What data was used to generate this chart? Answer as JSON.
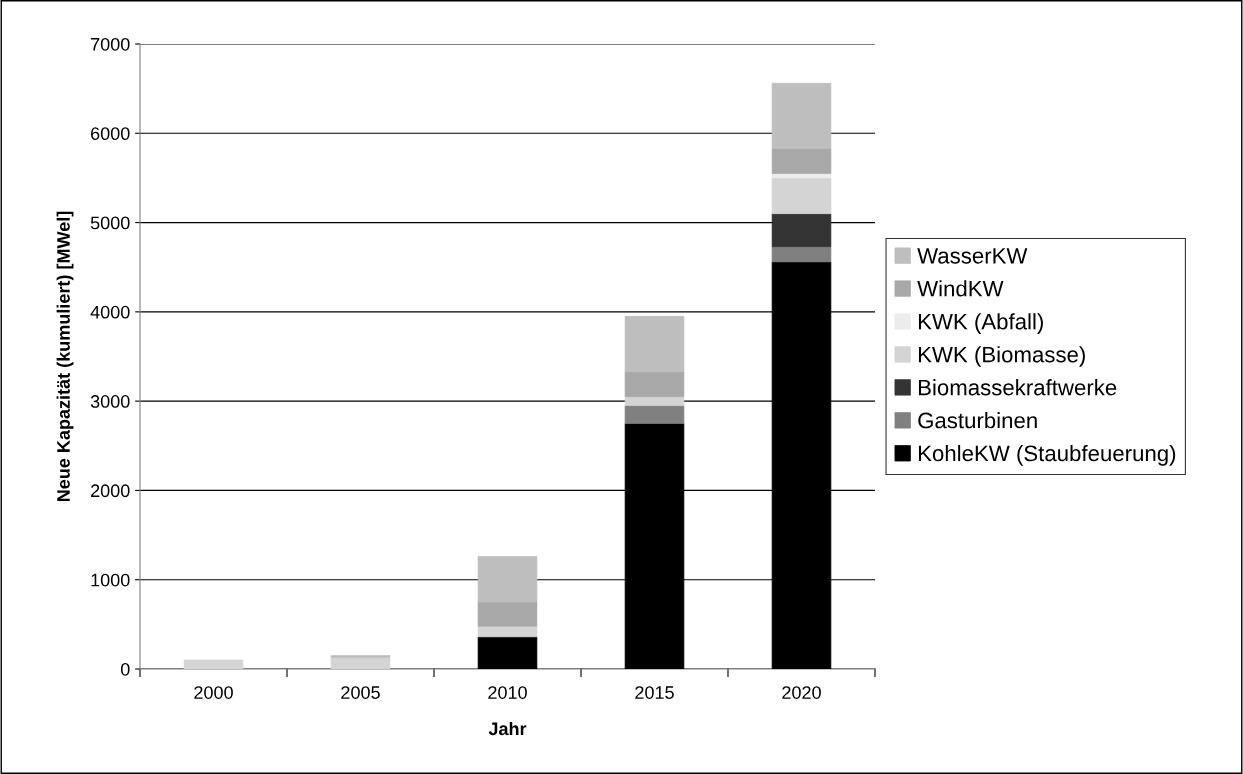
{
  "chart_data": {
    "type": "bar",
    "stacked": true,
    "xlabel": "Jahr",
    "ylabel": "Neue Kapazität (kumuliert) [MWel]",
    "categories": [
      "2000",
      "2005",
      "2010",
      "2015",
      "2020"
    ],
    "series": [
      {
        "name": "KohleKW (Staubfeuerung)",
        "color": "#000000",
        "values": [
          null,
          null,
          360,
          2750,
          4560
        ]
      },
      {
        "name": "Gasturbinen",
        "color": "#808080",
        "values": [
          null,
          null,
          null,
          200,
          170
        ]
      },
      {
        "name": "Biomassekraftwerke",
        "color": "#333333",
        "values": [
          null,
          null,
          null,
          null,
          370
        ]
      },
      {
        "name": "KWK (Biomasse)",
        "color": "#d4d4d4",
        "values": [
          100,
          130,
          120,
          100,
          400
        ]
      },
      {
        "name": "KWK (Abfall)",
        "color": "#ececec",
        "values": [
          null,
          null,
          null,
          null,
          50
        ]
      },
      {
        "name": "WindKW",
        "color": "#a8a8a8",
        "values": [
          null,
          null,
          270,
          280,
          280
        ]
      },
      {
        "name": "WasserKW",
        "color": "#bebebe",
        "values": [
          null,
          20,
          510,
          620,
          730
        ]
      }
    ],
    "ylim": [
      0,
      7000
    ],
    "yticks": [
      0,
      1000,
      2000,
      3000,
      4000,
      5000,
      6000,
      7000
    ],
    "grid": "y",
    "legend": "right"
  }
}
